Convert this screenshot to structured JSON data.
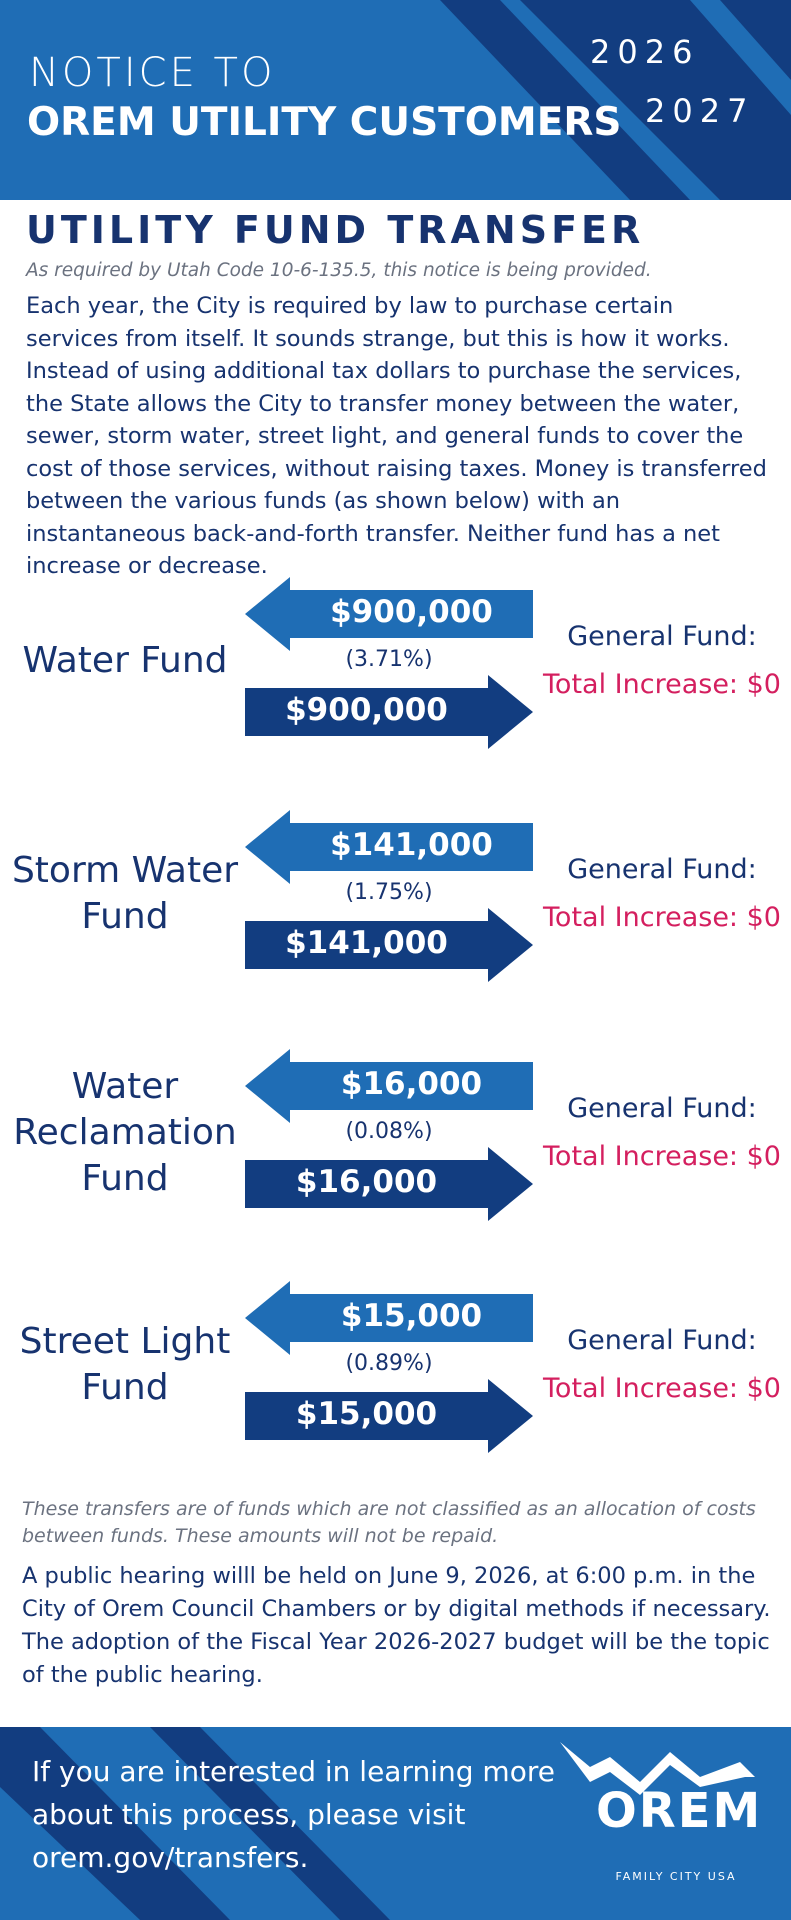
{
  "header": {
    "notice": "NOTICE TO",
    "title": "OREM UTILITY CUSTOMERS",
    "years": [
      "2026",
      "2027"
    ]
  },
  "section": {
    "title": "UTILITY FUND TRANSFER",
    "legal_note": "As required by Utah Code 10-6-135.5, this notice is being provided.",
    "body": "Each year, the City is required by law to purchase certain services from itself. It sounds strange, but this is how it works. Instead of using additional tax dollars to purchase the services, the State allows the City to transfer money between the water, sewer, storm water, street light, and general funds to cover the cost of those services, without raising taxes. Money is transferred between the various funds (as shown below) with an instantaneous back-and-forth transfer. Neither fund has a net increase or decrease."
  },
  "transfers": [
    {
      "fund": "Water Fund",
      "amount_in": "$900,000",
      "percent": "(3.71%)",
      "amount_out": "$900,000",
      "target": "General Fund:",
      "result": "Total Increase: $0"
    },
    {
      "fund": "Storm Water Fund",
      "amount_in": "$141,000",
      "percent": "(1.75%)",
      "amount_out": "$141,000",
      "target": "General Fund:",
      "result": "Total Increase: $0"
    },
    {
      "fund": "Water Reclamation Fund",
      "amount_in": "$16,000",
      "percent": "(0.08%)",
      "amount_out": "$16,000",
      "target": "General Fund:",
      "result": "Total Increase: $0"
    },
    {
      "fund": "Street Light Fund",
      "amount_in": "$15,000",
      "percent": "(0.89%)",
      "amount_out": "$15,000",
      "target": "General Fund:",
      "result": "Total Increase: $0"
    }
  ],
  "footnote": "These transfers are of funds which are not classified as an allocation of costs between funds. These amounts will not be repaid.",
  "hearing": "A public hearing willl be held on June 9, 2026, at 6:00 p.m. in the City of Orem Council Chambers or by digital methods if necessary. The adoption of the Fiscal Year 2026-2027 budget will be the topic of the public hearing.",
  "footer": {
    "cta": "If you are interested in learning more about this process, please visit orem.gov/transfers.",
    "logo": "OREM",
    "tagline": "FAMILY CITY USA"
  }
}
